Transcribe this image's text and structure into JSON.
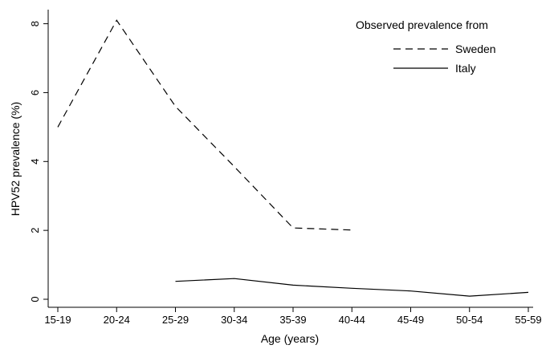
{
  "chart_data": {
    "type": "line",
    "categories": [
      "15-19",
      "20-24",
      "25-29",
      "30-34",
      "35-39",
      "40-44",
      "45-49",
      "50-54",
      "55-59"
    ],
    "series": [
      {
        "name": "Sweden",
        "values": [
          5.0,
          8.1,
          5.6,
          3.85,
          2.07,
          2.01,
          null,
          null,
          null
        ],
        "dash": "dashed",
        "color": "#000000"
      },
      {
        "name": "Italy",
        "values": [
          null,
          null,
          0.52,
          0.6,
          0.41,
          0.32,
          0.24,
          0.09,
          0.2
        ],
        "dash": "solid",
        "color": "#000000"
      }
    ],
    "xlabel": "Age (years)",
    "ylabel": "HPV52 prevalence (%)",
    "yticks": [
      0,
      2,
      4,
      6,
      8
    ],
    "ylim": [
      0,
      8.2
    ],
    "legend_title": "Observed prevalence from",
    "legend_position": "top-right",
    "grid": false
  }
}
